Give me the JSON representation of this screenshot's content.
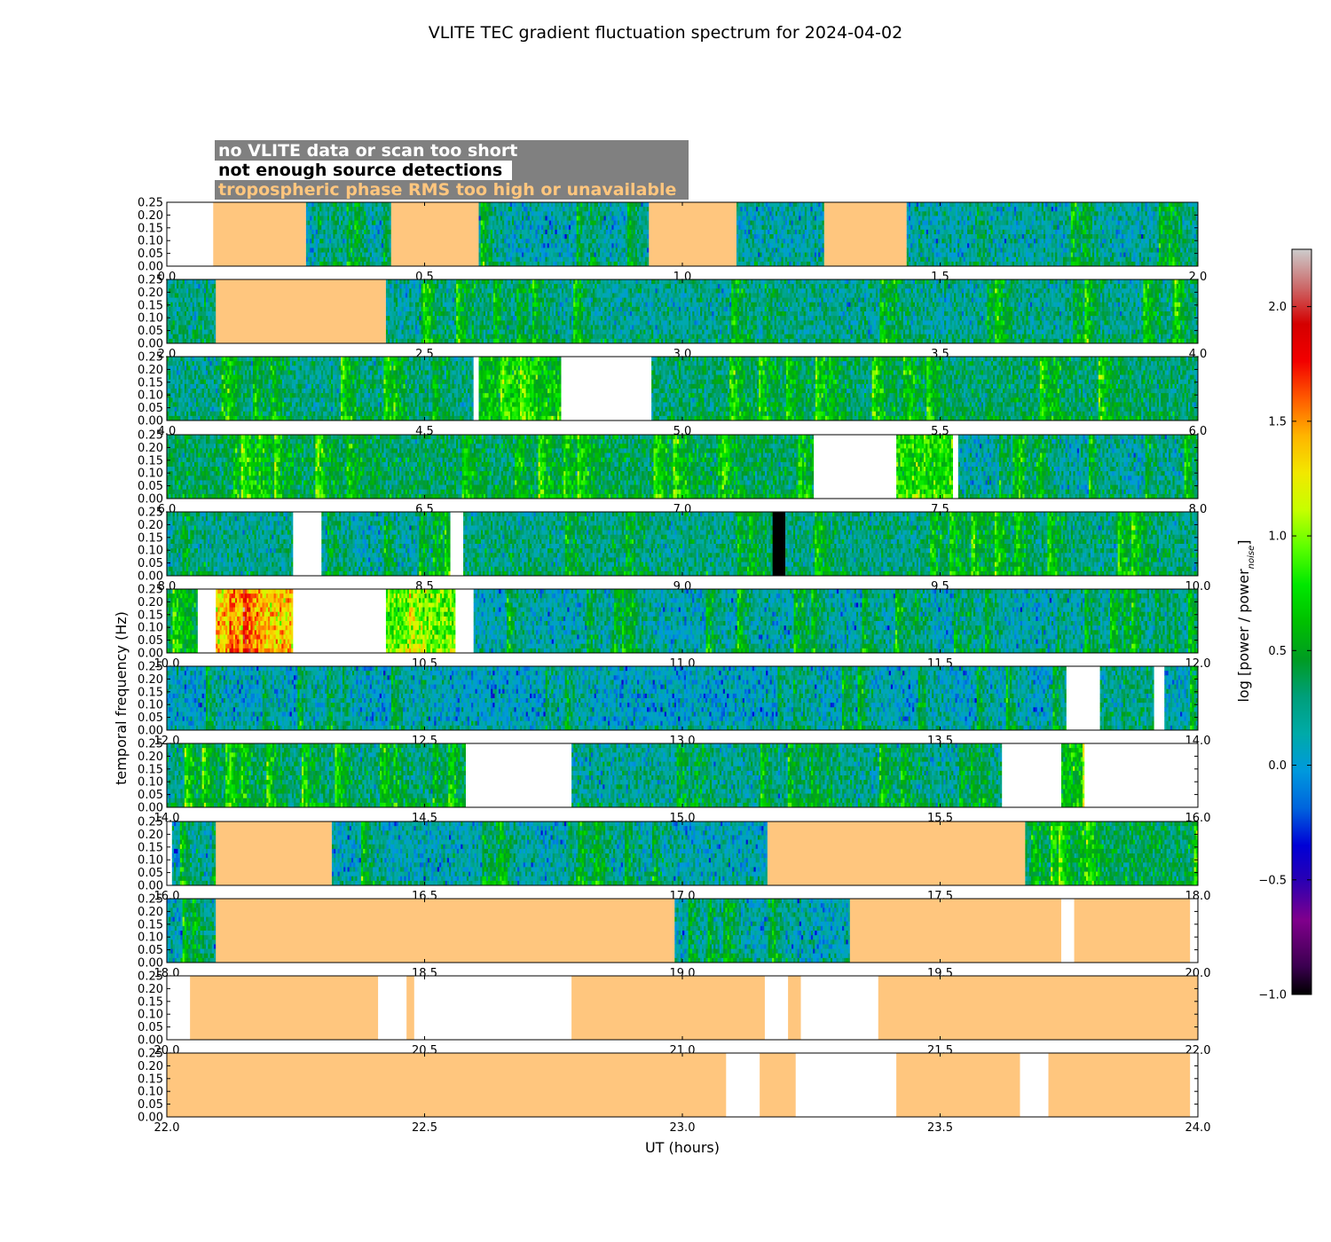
{
  "chart_data": {
    "type": "heatmap",
    "title": "VLITE TEC gradient fluctuation spectrum for 2024-04-02",
    "xlabel": "UT (hours)",
    "ylabel": "temporal frequency (Hz)",
    "colorbar_label": "log [power / power",
    "colorbar_label_sub": "noise",
    "colorbar_label_end": "]",
    "colorbar_range": [
      -1.0,
      2.25
    ],
    "colorbar_ticks": [
      "−1.0",
      "−0.5",
      "0.0",
      "0.5",
      "1.0",
      "1.5",
      "2.0"
    ],
    "colormap": "nipy_spectral",
    "y_range": [
      0.0,
      0.25
    ],
    "y_ticks": [
      "0.00",
      "0.05",
      "0.10",
      "0.15",
      "0.20",
      "0.25"
    ],
    "legend": [
      {
        "label": "no VLITE data or scan too short",
        "color": "#ffffff",
        "category": "nodata"
      },
      {
        "label": "not enough source detections",
        "color": "#000000",
        "category": "nodet"
      },
      {
        "label": "tropospheric phase RMS too high or unavailable",
        "color": "#ffc67e",
        "category": "trop"
      }
    ],
    "panels": [
      {
        "range": [
          0,
          2
        ],
        "x_ticks": [
          "0.0",
          "0.5",
          "1.0",
          "1.5",
          "2.0"
        ],
        "segments": [
          [
            0.0,
            0.09,
            "nodata",
            0
          ],
          [
            0.09,
            0.27,
            "trop",
            0
          ],
          [
            0.27,
            0.435,
            "data",
            0.1
          ],
          [
            0.435,
            0.605,
            "trop",
            0
          ],
          [
            0.605,
            0.935,
            "data",
            0.1
          ],
          [
            0.935,
            1.105,
            "trop",
            0
          ],
          [
            1.105,
            1.275,
            "data",
            0.15
          ],
          [
            1.275,
            1.435,
            "trop",
            0
          ],
          [
            1.435,
            2.0,
            "data",
            0.15
          ]
        ]
      },
      {
        "range": [
          2,
          4
        ],
        "x_ticks": [
          "2.0",
          "2.5",
          "3.0",
          "3.5",
          "4.0"
        ],
        "segments": [
          [
            2.0,
            2.095,
            "data",
            0.25
          ],
          [
            2.095,
            2.425,
            "trop",
            0
          ],
          [
            2.425,
            4.0,
            "data",
            0.2
          ]
        ]
      },
      {
        "range": [
          4,
          6
        ],
        "x_ticks": [
          "4.0",
          "4.5",
          "5.0",
          "5.5",
          "6.0"
        ],
        "segments": [
          [
            4.0,
            4.595,
            "data",
            0.25
          ],
          [
            4.595,
            4.605,
            "nodata",
            0
          ],
          [
            4.605,
            4.765,
            "data",
            0.6
          ],
          [
            4.765,
            4.94,
            "nodata",
            0
          ],
          [
            4.94,
            6.0,
            "data",
            0.3
          ]
        ]
      },
      {
        "range": [
          6,
          8
        ],
        "x_ticks": [
          "6.0",
          "6.5",
          "7.0",
          "7.5",
          "8.0"
        ],
        "segments": [
          [
            6.0,
            7.255,
            "data",
            0.35
          ],
          [
            7.255,
            7.415,
            "nodata",
            0
          ],
          [
            7.415,
            7.525,
            "data",
            0.75
          ],
          [
            7.525,
            7.535,
            "nodata",
            0
          ],
          [
            7.535,
            8.0,
            "data",
            0.15
          ]
        ]
      },
      {
        "range": [
          8,
          10
        ],
        "x_ticks": [
          "8.0",
          "8.5",
          "9.0",
          "9.5",
          "10.0"
        ],
        "segments": [
          [
            8.0,
            8.245,
            "data",
            0.2
          ],
          [
            8.245,
            8.3,
            "nodata",
            0
          ],
          [
            8.3,
            8.55,
            "data",
            0.15
          ],
          [
            8.55,
            8.575,
            "nodata",
            0
          ],
          [
            8.575,
            9.175,
            "data",
            0.25
          ],
          [
            9.175,
            9.2,
            "nodet",
            0
          ],
          [
            9.2,
            10.0,
            "data",
            0.25
          ]
        ]
      },
      {
        "range": [
          10,
          12
        ],
        "x_ticks": [
          "10.0",
          "10.5",
          "11.0",
          "11.5",
          "12.0"
        ],
        "segments": [
          [
            10.0,
            10.06,
            "data",
            0.4
          ],
          [
            10.06,
            10.095,
            "nodata",
            0
          ],
          [
            10.095,
            10.245,
            "data",
            1.3
          ],
          [
            10.245,
            10.425,
            "nodata",
            0
          ],
          [
            10.425,
            10.56,
            "data",
            0.9
          ],
          [
            10.56,
            10.595,
            "nodata",
            0
          ],
          [
            10.595,
            12.0,
            "data",
            0.1
          ]
        ]
      },
      {
        "range": [
          12,
          14
        ],
        "x_ticks": [
          "12.0",
          "12.5",
          "13.0",
          "13.5",
          "14.0"
        ],
        "segments": [
          [
            12.0,
            13.745,
            "data",
            0.05
          ],
          [
            13.745,
            13.81,
            "nodata",
            0
          ],
          [
            13.81,
            13.915,
            "data",
            0.25
          ],
          [
            13.915,
            13.935,
            "nodata",
            0
          ],
          [
            13.935,
            14.0,
            "data",
            0.1
          ]
        ]
      },
      {
        "range": [
          14,
          16
        ],
        "x_ticks": [
          "14.0",
          "14.5",
          "15.0",
          "15.5",
          "16.0"
        ],
        "segments": [
          [
            14.0,
            14.58,
            "data",
            0.25
          ],
          [
            14.58,
            14.785,
            "nodata",
            0
          ],
          [
            14.785,
            15.62,
            "data",
            0.2
          ],
          [
            15.62,
            15.735,
            "nodata",
            0
          ],
          [
            15.735,
            15.78,
            "data",
            0.6
          ],
          [
            15.78,
            16.0,
            "nodata",
            0
          ]
        ]
      },
      {
        "range": [
          16,
          18
        ],
        "x_ticks": [
          "16.0",
          "16.5",
          "17.0",
          "17.5",
          "18.0"
        ],
        "segments": [
          [
            16.0,
            16.01,
            "nodata",
            0
          ],
          [
            16.01,
            16.095,
            "data",
            0.1
          ],
          [
            16.095,
            16.32,
            "trop",
            0
          ],
          [
            16.32,
            17.165,
            "data",
            0.1
          ],
          [
            17.165,
            17.665,
            "trop",
            0
          ],
          [
            17.665,
            18.0,
            "data",
            0.35
          ]
        ]
      },
      {
        "range": [
          18,
          20
        ],
        "x_ticks": [
          "18.0",
          "18.5",
          "19.0",
          "19.5",
          "20.0"
        ],
        "segments": [
          [
            18.0,
            18.095,
            "data",
            0.1
          ],
          [
            18.095,
            18.985,
            "trop",
            0
          ],
          [
            18.985,
            19.325,
            "data",
            0.1
          ],
          [
            19.325,
            19.735,
            "trop",
            0
          ],
          [
            19.735,
            19.76,
            "nodata",
            0
          ],
          [
            19.76,
            19.985,
            "trop",
            0
          ],
          [
            19.985,
            20.0,
            "nodata",
            0
          ]
        ]
      },
      {
        "range": [
          20,
          22
        ],
        "x_ticks": [
          "20.0",
          "20.5",
          "21.0",
          "21.5",
          "22.0"
        ],
        "segments": [
          [
            20.0,
            20.045,
            "nodata",
            0
          ],
          [
            20.045,
            20.41,
            "trop",
            0
          ],
          [
            20.41,
            20.465,
            "nodata",
            0
          ],
          [
            20.465,
            20.48,
            "trop",
            0
          ],
          [
            20.48,
            20.785,
            "nodata",
            0
          ],
          [
            20.785,
            21.16,
            "trop",
            0
          ],
          [
            21.16,
            21.205,
            "nodata",
            0
          ],
          [
            21.205,
            21.23,
            "trop",
            0
          ],
          [
            21.23,
            21.38,
            "nodata",
            0
          ],
          [
            21.38,
            22.0,
            "trop",
            0
          ]
        ]
      },
      {
        "range": [
          22,
          24
        ],
        "x_ticks": [
          "22.0",
          "22.5",
          "23.0",
          "23.5",
          "24.0"
        ],
        "segments": [
          [
            22.0,
            23.085,
            "trop",
            0
          ],
          [
            23.085,
            23.15,
            "nodata",
            0
          ],
          [
            23.15,
            23.22,
            "trop",
            0
          ],
          [
            23.22,
            23.415,
            "nodata",
            0
          ],
          [
            23.415,
            23.655,
            "trop",
            0
          ],
          [
            23.655,
            23.71,
            "nodata",
            0
          ],
          [
            23.71,
            23.985,
            "trop",
            0
          ],
          [
            23.985,
            24.0,
            "nodata",
            0
          ]
        ]
      }
    ]
  }
}
